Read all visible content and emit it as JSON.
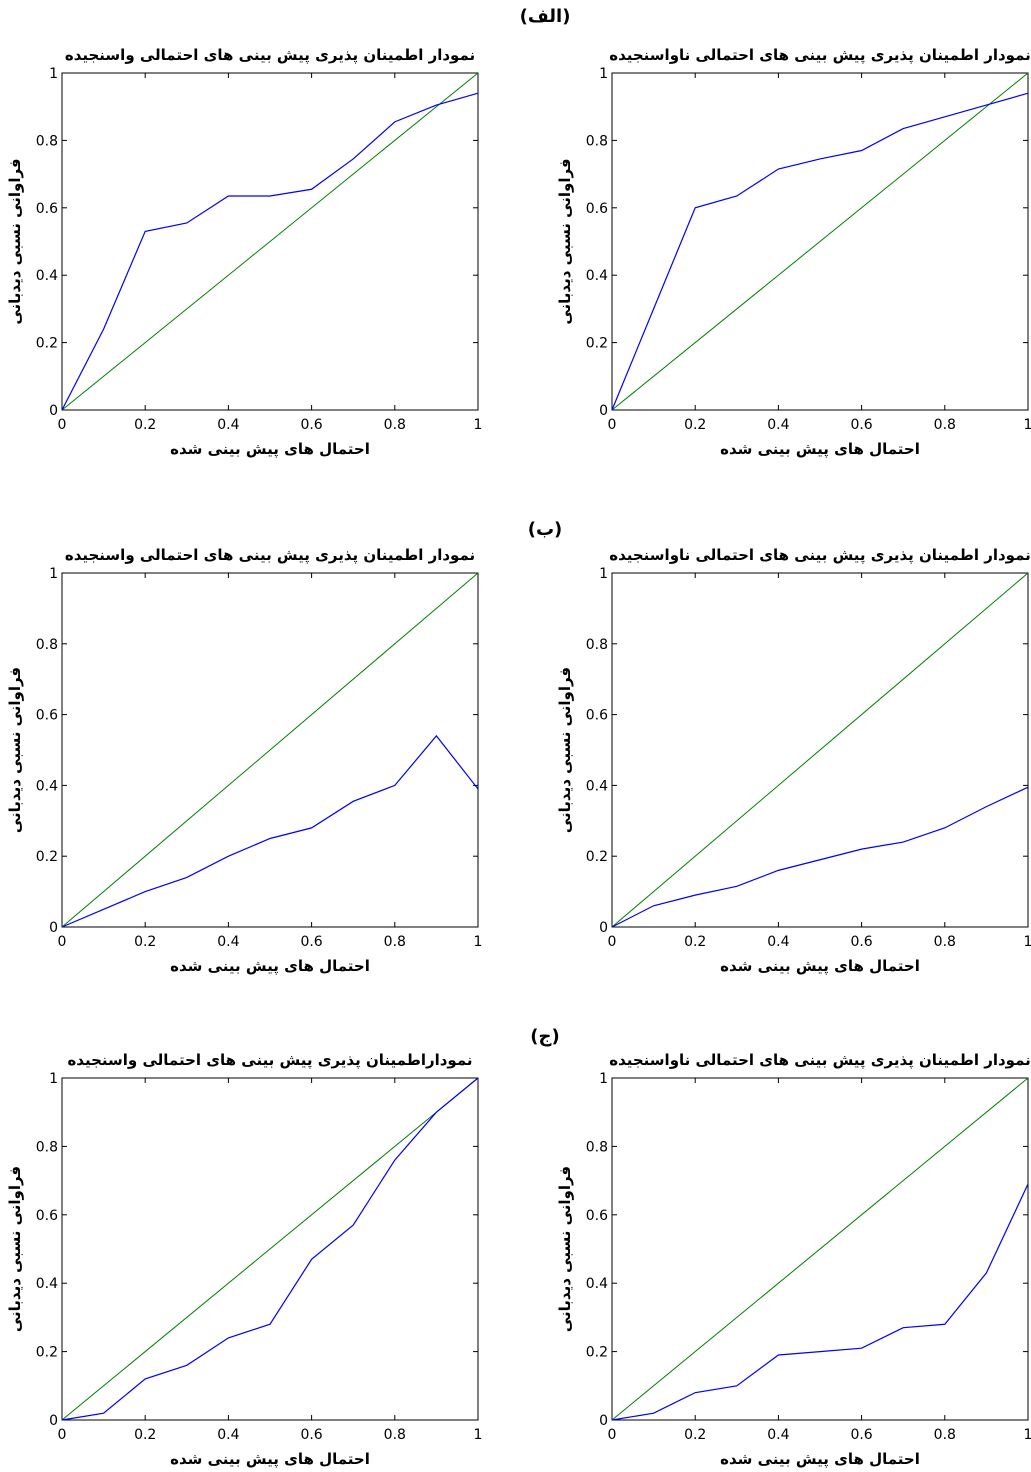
{
  "section_labels": [
    "(الف)",
    "(ب)",
    "(ج)"
  ],
  "colors": {
    "observed": "#0000ff",
    "diagonal": "#007f00",
    "axes": "#000000"
  },
  "chart_data": [
    {
      "type": "line",
      "panel": "a-right",
      "title": "نمودار اطمینان پذیری پیش بینی های احتمالی ناواسنجیده",
      "xlabel": "احتمال های پیش بینی شده",
      "ylabel": "فراوانی نسبی دیدبانی",
      "xlim": [
        0,
        1
      ],
      "ylim": [
        0,
        1
      ],
      "xticks": [
        "0",
        "0.2",
        "0.4",
        "0.6",
        "0.8",
        "1"
      ],
      "yticks": [
        "0",
        "0.2",
        "0.4",
        "0.6",
        "0.8",
        "1"
      ],
      "series": [
        {
          "x": [
            0,
            0.1,
            0.2,
            0.3,
            0.4,
            0.5,
            0.6,
            0.7,
            0.8,
            0.9,
            1.0
          ],
          "y": [
            0,
            0.3,
            0.6,
            0.635,
            0.715,
            0.745,
            0.77,
            0.835,
            0.87,
            0.905,
            0.94
          ]
        },
        {
          "x": [
            0,
            1
          ],
          "y": [
            0,
            1
          ]
        }
      ]
    },
    {
      "type": "line",
      "panel": "a-left",
      "title": "نمودار اطمینان پذیری پیش بینی های احتمالی واسنجیده",
      "xlabel": "احتمال های پیش بینی شده",
      "ylabel": "فراوانی نسبی دیدبانی",
      "xlim": [
        0,
        1
      ],
      "ylim": [
        0,
        1
      ],
      "xticks": [
        "0",
        "0.2",
        "0.4",
        "0.6",
        "0.8",
        "1"
      ],
      "yticks": [
        "0",
        "0.2",
        "0.4",
        "0.6",
        "0.8",
        "1"
      ],
      "series": [
        {
          "x": [
            0,
            0.1,
            0.2,
            0.3,
            0.4,
            0.5,
            0.6,
            0.7,
            0.8,
            0.9,
            1.0
          ],
          "y": [
            0,
            0.24,
            0.53,
            0.555,
            0.635,
            0.635,
            0.655,
            0.745,
            0.855,
            0.905,
            0.94
          ]
        },
        {
          "x": [
            0,
            1
          ],
          "y": [
            0,
            1
          ]
        }
      ]
    },
    {
      "type": "line",
      "panel": "b-right",
      "title": "نمودار اطمینان پذیری پیش بینی های احتمالی ناواسنجیده",
      "xlabel": "احتمال های پیش بینی شده",
      "ylabel": "فراوانی نسبی دیدبانی",
      "xlim": [
        0,
        1
      ],
      "ylim": [
        0,
        1
      ],
      "xticks": [
        "0",
        "0.2",
        "0.4",
        "0.6",
        "0.8",
        "1"
      ],
      "yticks": [
        "0",
        "0.2",
        "0.4",
        "0.6",
        "0.8",
        "1"
      ],
      "series": [
        {
          "x": [
            0,
            0.1,
            0.2,
            0.3,
            0.4,
            0.5,
            0.6,
            0.7,
            0.8,
            0.9,
            1.0
          ],
          "y": [
            0,
            0.06,
            0.09,
            0.115,
            0.16,
            0.19,
            0.22,
            0.24,
            0.28,
            0.34,
            0.395
          ]
        },
        {
          "x": [
            0,
            1
          ],
          "y": [
            0,
            1
          ]
        }
      ]
    },
    {
      "type": "line",
      "panel": "b-left",
      "title": "نمودار اطمینان پذیری پیش بینی های احتمالی واسنجیده",
      "xlabel": "احتمال های پیش بینی شده",
      "ylabel": "فراوانی نسبی دیدبانی",
      "xlim": [
        0,
        1
      ],
      "ylim": [
        0,
        1
      ],
      "xticks": [
        "0",
        "0.2",
        "0.4",
        "0.6",
        "0.8",
        "1"
      ],
      "yticks": [
        "0",
        "0.2",
        "0.4",
        "0.6",
        "0.8",
        "1"
      ],
      "series": [
        {
          "x": [
            0,
            0.1,
            0.2,
            0.3,
            0.4,
            0.5,
            0.6,
            0.7,
            0.8,
            0.9,
            1.0
          ],
          "y": [
            0,
            0.05,
            0.1,
            0.14,
            0.2,
            0.25,
            0.28,
            0.355,
            0.4,
            0.54,
            0.39
          ]
        },
        {
          "x": [
            0,
            1
          ],
          "y": [
            0,
            1
          ]
        }
      ]
    },
    {
      "type": "line",
      "panel": "c-right",
      "title": "نمودار اطمینان پذیری پیش بینی های احتمالی ناواسنجیده",
      "xlabel": "احتمال های پیش بینی شده",
      "ylabel": "فراوانی نسبی دیدبانی",
      "xlim": [
        0,
        1
      ],
      "ylim": [
        0,
        1
      ],
      "xticks": [
        "0",
        "0.2",
        "0.4",
        "0.6",
        "0.8",
        "1"
      ],
      "yticks": [
        "0",
        "0.2",
        "0.4",
        "0.6",
        "0.8",
        "1"
      ],
      "series": [
        {
          "x": [
            0,
            0.1,
            0.2,
            0.3,
            0.4,
            0.5,
            0.6,
            0.7,
            0.8,
            0.9,
            1.0
          ],
          "y": [
            0,
            0.02,
            0.08,
            0.1,
            0.19,
            0.2,
            0.21,
            0.27,
            0.28,
            0.43,
            0.69
          ]
        },
        {
          "x": [
            0,
            1
          ],
          "y": [
            0,
            1
          ]
        }
      ]
    },
    {
      "type": "line",
      "panel": "c-left",
      "title": "نموداراطمینان پذیری پیش بینی های احتمالی واسنجیده",
      "xlabel": "احتمال های پیش بینی شده",
      "ylabel": "فراوانی نسبی دیدبانی",
      "xlim": [
        0,
        1
      ],
      "ylim": [
        0,
        1
      ],
      "xticks": [
        "0",
        "0.2",
        "0.4",
        "0.6",
        "0.8",
        "1"
      ],
      "yticks": [
        "0",
        "0.2",
        "0.4",
        "0.6",
        "0.8",
        "1"
      ],
      "series": [
        {
          "x": [
            0,
            0.1,
            0.2,
            0.3,
            0.4,
            0.5,
            0.6,
            0.7,
            0.8,
            0.9,
            1.0
          ],
          "y": [
            0,
            0.02,
            0.12,
            0.16,
            0.24,
            0.28,
            0.47,
            0.57,
            0.76,
            0.9,
            1.0
          ]
        },
        {
          "x": [
            0,
            1
          ],
          "y": [
            0,
            1
          ]
        }
      ]
    }
  ]
}
